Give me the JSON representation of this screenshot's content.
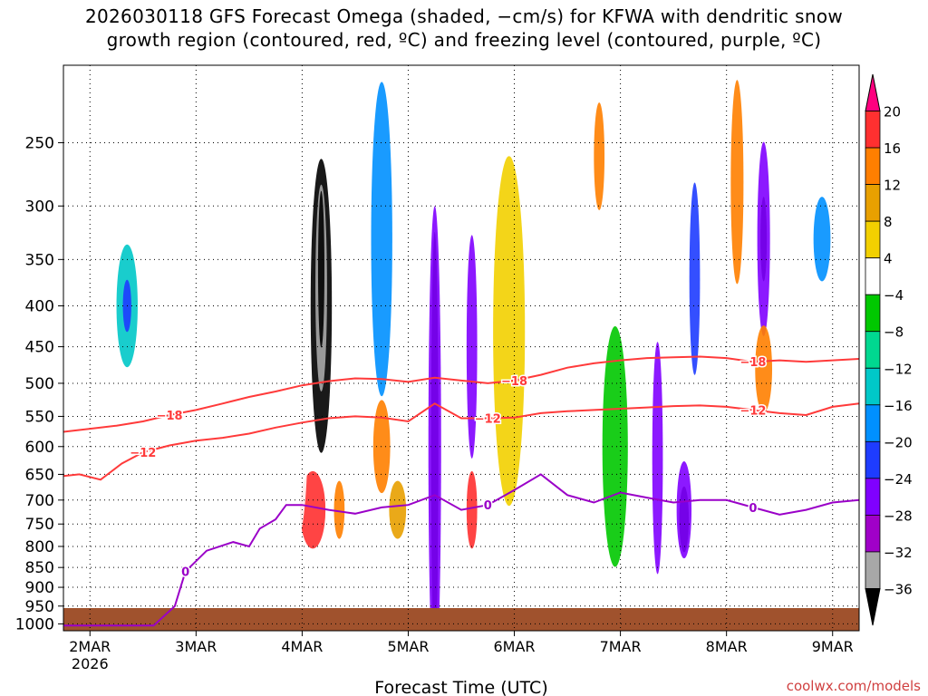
{
  "title_line1": "2026030118 GFS Forecast Omega (shaded, −cm/s) for KFWA with dendritic snow",
  "title_line2": "growth region (contoured, red, ºC) and freezing level (contoured, purple, ºC)",
  "credit": "coolwx.com/models",
  "chart_data": {
    "type": "heatmap",
    "xlabel": "Forecast Time (UTC)",
    "ylabel": "",
    "x_ticks": [
      "2MAR",
      "3MAR",
      "4MAR",
      "5MAR",
      "6MAR",
      "7MAR",
      "8MAR",
      "9MAR"
    ],
    "x_year_label": "2026",
    "x_range_days": [
      1.75,
      9.25
    ],
    "y_range_hpa": [
      200,
      1020
    ],
    "y_ticks": [
      250,
      300,
      350,
      400,
      450,
      500,
      550,
      600,
      650,
      700,
      750,
      800,
      850,
      900,
      950,
      1000
    ],
    "grid": true,
    "colorbar": {
      "levels": [
        "20",
        "16",
        "12",
        "8",
        "4",
        "−4",
        "−8",
        "−12",
        "−16",
        "−20",
        "−24",
        "−28",
        "−32",
        "−36"
      ],
      "colors": [
        "#ff007f",
        "#ff3030",
        "#ff7f00",
        "#e8a000",
        "#f2d000",
        "#ffffff",
        "#00c800",
        "#00d890",
        "#00c8c8",
        "#0090ff",
        "#1e3cff",
        "#8000ff",
        "#a000c8",
        "#a8a8a8",
        "#000000"
      ]
    },
    "contours": [
      {
        "name": "-18",
        "color": "#ff3a3a",
        "label": "−18",
        "points": [
          [
            1.75,
            575
          ],
          [
            2.0,
            570
          ],
          [
            2.25,
            565
          ],
          [
            2.5,
            558
          ],
          [
            2.75,
            548
          ],
          [
            3.0,
            540
          ],
          [
            3.25,
            530
          ],
          [
            3.5,
            520
          ],
          [
            3.75,
            512
          ],
          [
            4.0,
            503
          ],
          [
            4.25,
            497
          ],
          [
            4.5,
            493
          ],
          [
            4.75,
            494
          ],
          [
            5.0,
            498
          ],
          [
            5.25,
            492
          ],
          [
            5.5,
            496
          ],
          [
            5.75,
            500
          ],
          [
            6.0,
            496
          ],
          [
            6.25,
            488
          ],
          [
            6.5,
            478
          ],
          [
            6.75,
            472
          ],
          [
            7.0,
            468
          ],
          [
            7.25,
            465
          ],
          [
            7.5,
            464
          ],
          [
            7.75,
            463
          ],
          [
            8.0,
            465
          ],
          [
            8.25,
            470
          ],
          [
            8.5,
            468
          ],
          [
            8.75,
            470
          ],
          [
            9.0,
            468
          ],
          [
            9.25,
            466
          ]
        ]
      },
      {
        "name": "-12",
        "color": "#ff3a3a",
        "label": "−12",
        "points": [
          [
            1.75,
            653
          ],
          [
            1.9,
            650
          ],
          [
            2.1,
            660
          ],
          [
            2.3,
            630
          ],
          [
            2.5,
            610
          ],
          [
            2.75,
            598
          ],
          [
            3.0,
            590
          ],
          [
            3.25,
            585
          ],
          [
            3.5,
            578
          ],
          [
            3.75,
            568
          ],
          [
            4.0,
            560
          ],
          [
            4.25,
            553
          ],
          [
            4.5,
            550
          ],
          [
            4.75,
            552
          ],
          [
            5.0,
            558
          ],
          [
            5.25,
            530
          ],
          [
            5.5,
            553
          ],
          [
            5.75,
            553
          ],
          [
            6.0,
            552
          ],
          [
            6.25,
            545
          ],
          [
            6.5,
            542
          ],
          [
            6.75,
            540
          ],
          [
            7.0,
            538
          ],
          [
            7.25,
            536
          ],
          [
            7.5,
            534
          ],
          [
            7.75,
            533
          ],
          [
            8.0,
            535
          ],
          [
            8.25,
            540
          ],
          [
            8.5,
            545
          ],
          [
            8.75,
            548
          ],
          [
            9.0,
            535
          ],
          [
            9.25,
            530
          ]
        ]
      },
      {
        "name": "0",
        "color": "#9a00c8",
        "label": "0",
        "points": [
          [
            1.75,
            1005
          ],
          [
            1.9,
            1005
          ],
          [
            2.6,
            1005
          ],
          [
            2.8,
            950
          ],
          [
            2.9,
            860
          ],
          [
            3.1,
            810
          ],
          [
            3.35,
            790
          ],
          [
            3.5,
            800
          ],
          [
            3.6,
            760
          ],
          [
            3.75,
            740
          ],
          [
            3.85,
            710
          ],
          [
            4.0,
            710
          ],
          [
            4.25,
            720
          ],
          [
            4.5,
            728
          ],
          [
            4.75,
            715
          ],
          [
            5.0,
            710
          ],
          [
            5.25,
            690
          ],
          [
            5.5,
            720
          ],
          [
            5.75,
            710
          ],
          [
            6.0,
            680
          ],
          [
            6.25,
            650
          ],
          [
            6.5,
            690
          ],
          [
            6.75,
            705
          ],
          [
            7.0,
            685
          ],
          [
            7.25,
            695
          ],
          [
            7.5,
            705
          ],
          [
            7.75,
            700
          ],
          [
            8.0,
            700
          ],
          [
            8.25,
            715
          ],
          [
            8.5,
            730
          ],
          [
            8.75,
            720
          ],
          [
            9.0,
            705
          ],
          [
            9.25,
            700
          ]
        ]
      }
    ]
  }
}
